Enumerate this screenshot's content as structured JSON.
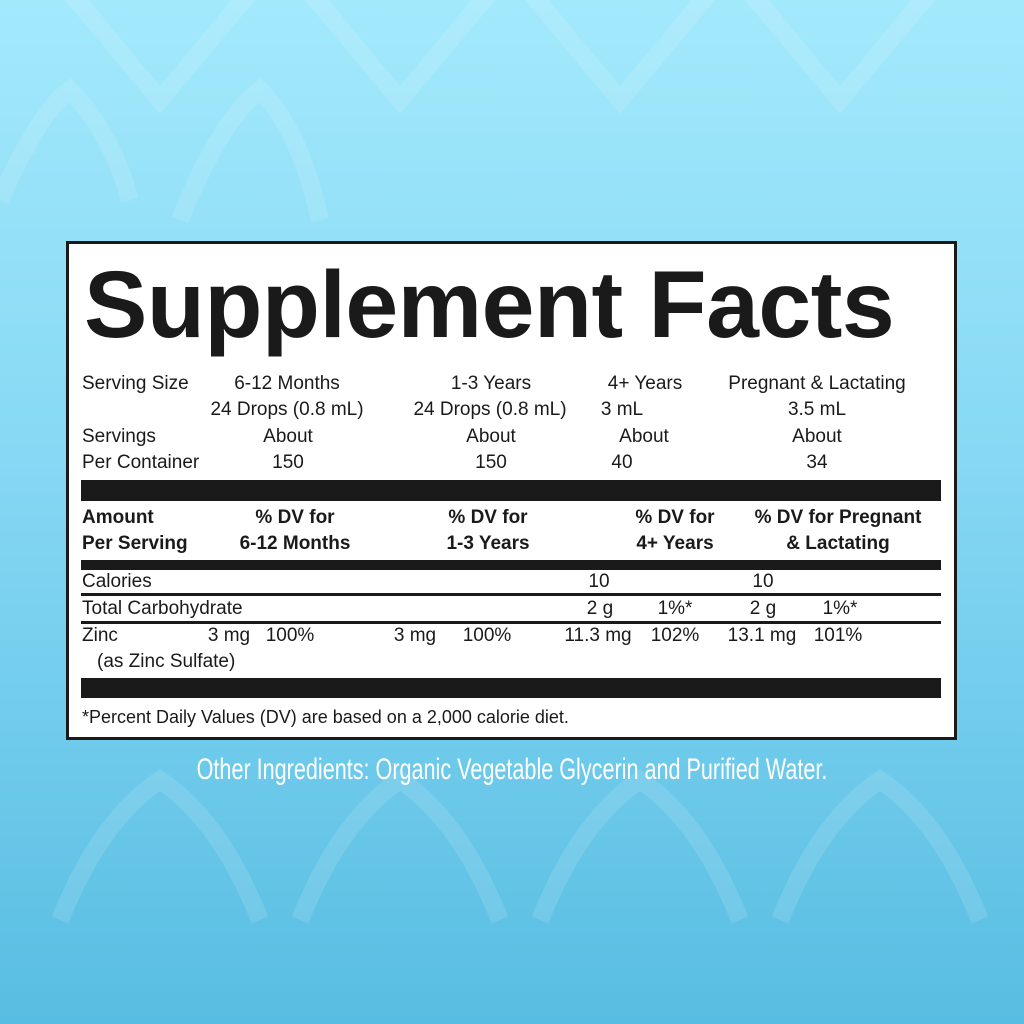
{
  "background_color": "#8fdcf6",
  "title": "Supplement Facts",
  "serving_size": {
    "label": "Serving Size",
    "groups": [
      "6-12 Months",
      "1-3 Years",
      "4+ Years",
      "Pregnant & Lactating"
    ],
    "amounts": [
      "24 Drops (0.8 mL)",
      "24 Drops (0.8 mL)",
      "3 mL",
      "3.5 mL"
    ]
  },
  "servings": {
    "label1": "Servings",
    "label2": "Per Container",
    "about": [
      "About",
      "About",
      "About",
      "About"
    ],
    "counts": [
      "150",
      "150",
      "40",
      "34"
    ]
  },
  "header": {
    "amount1": "Amount",
    "amount2": "Per Serving",
    "cols": [
      {
        "l1": "% DV for",
        "l2": "6-12 Months"
      },
      {
        "l1": "% DV for",
        "l2": "1-3 Years"
      },
      {
        "l1": "% DV for",
        "l2": "4+ Years"
      },
      {
        "l1": "% DV for Pregnant",
        "l2": "& Lactating"
      }
    ]
  },
  "rows": {
    "calories": {
      "name": "Calories",
      "v4": "10",
      "vp": "10"
    },
    "carb": {
      "name": "Total Carbohydrate",
      "a4": "2 g",
      "d4": "1%*",
      "ap": "2 g",
      "dp": "1%*"
    },
    "zinc": {
      "name": "Zinc",
      "sub": "(as Zinc Sulfate)",
      "a1": "3 mg",
      "d1": "100%",
      "a2": "3 mg",
      "d2": "100%",
      "a3": "11.3 mg",
      "d3": "102%",
      "a4": "13.1 mg",
      "d4": "101%"
    }
  },
  "footnote": "*Percent Daily Values (DV) are based on a 2,000 calorie diet.",
  "other_ingredients": "Other Ingredients: Organic Vegetable Glycerin and Purified Water."
}
